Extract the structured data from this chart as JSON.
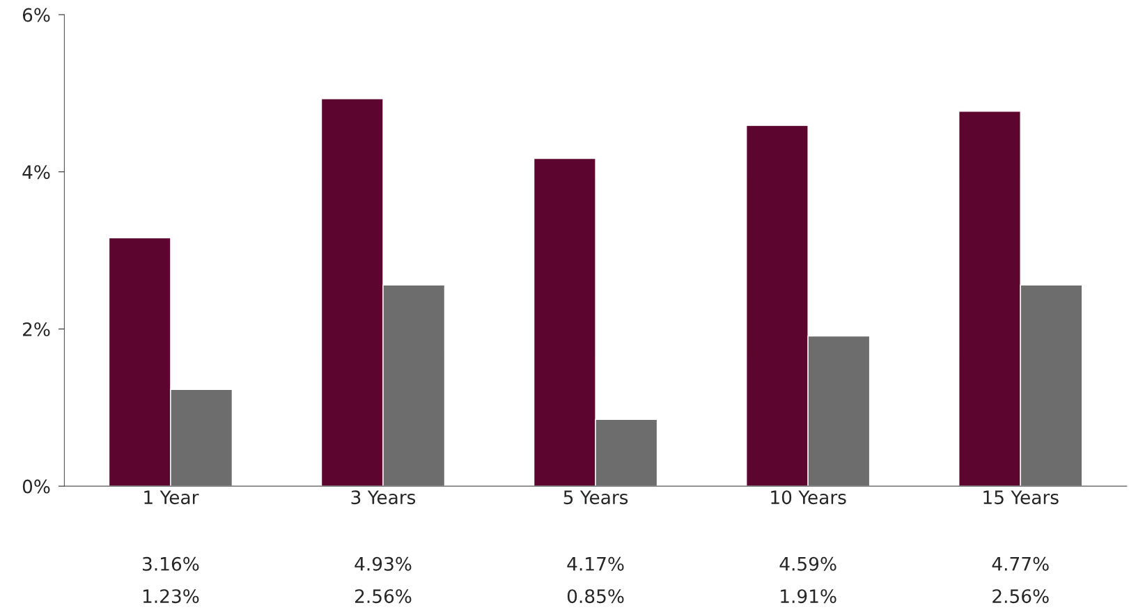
{
  "chart_data": {
    "type": "bar",
    "categories": [
      "1 Year",
      "3 Years",
      "5 Years",
      "10 Years",
      "15 Years"
    ],
    "series": [
      {
        "color": "#5c052e",
        "values": [
          3.16,
          4.93,
          4.17,
          4.59,
          4.77
        ],
        "value_labels": [
          "3.16%",
          "4.93%",
          "4.17%",
          "4.59%",
          "4.77%"
        ]
      },
      {
        "color": "#6d6d6d",
        "values": [
          1.23,
          2.56,
          0.85,
          1.91,
          2.56
        ],
        "value_labels": [
          "1.23%",
          "2.56%",
          "0.85%",
          "1.91%",
          "2.56%"
        ]
      }
    ],
    "ylim": [
      0,
      6
    ],
    "yticks": [
      {
        "value": 0,
        "label": "0%"
      },
      {
        "value": 2,
        "label": "2%"
      },
      {
        "value": 4,
        "label": "4%"
      },
      {
        "value": 6,
        "label": "6%"
      }
    ],
    "grid": false
  }
}
